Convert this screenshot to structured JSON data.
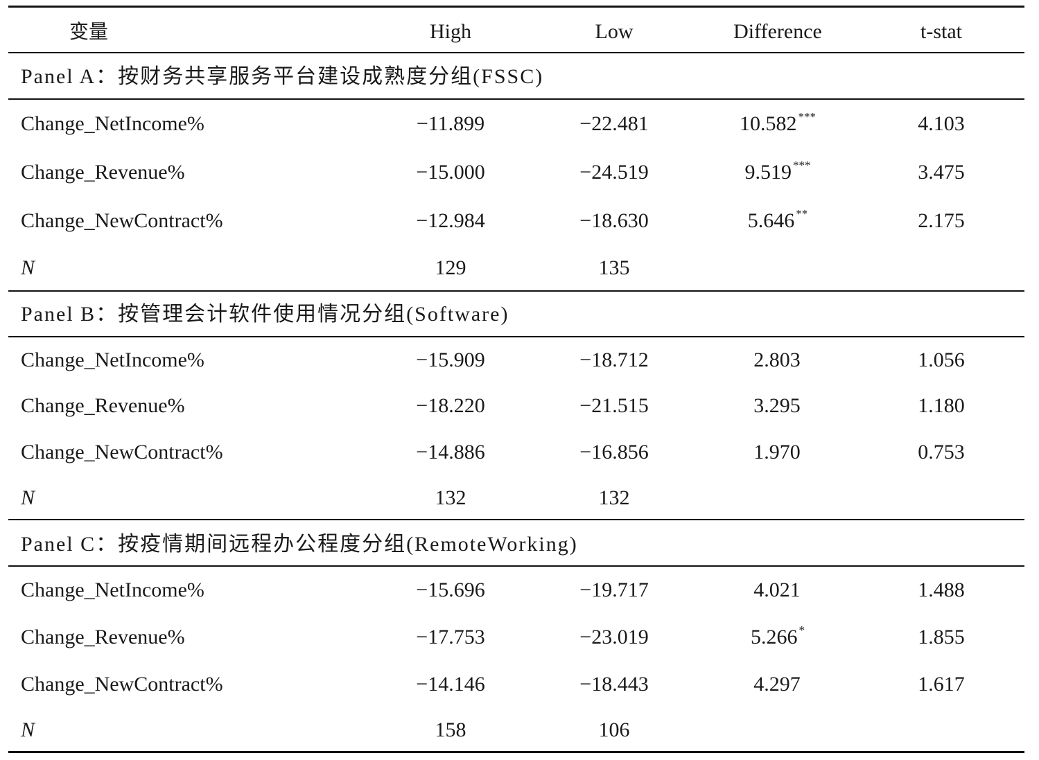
{
  "table": {
    "columns": [
      "变量",
      "High",
      "Low",
      "Difference",
      "t-stat"
    ],
    "panels": [
      {
        "title": "Panel A：按财务共享服务平台建设成熟度分组(FSSC)",
        "rows": [
          {
            "var": "Change_NetIncome%",
            "high": "−11.899",
            "low": "−22.481",
            "diff": "10.582",
            "stars": "***",
            "t": "4.103"
          },
          {
            "var": "Change_Revenue%",
            "high": "−15.000",
            "low": "−24.519",
            "diff": "9.519",
            "stars": "***",
            "t": "3.475"
          },
          {
            "var": "Change_NewContract%",
            "high": "−12.984",
            "low": "−18.630",
            "diff": "5.646",
            "stars": "**",
            "t": "2.175"
          }
        ],
        "n": {
          "label": "N",
          "high": "129",
          "low": "135"
        }
      },
      {
        "title": "Panel B：按管理会计软件使用情况分组(Software)",
        "rows": [
          {
            "var": "Change_NetIncome%",
            "high": "−15.909",
            "low": "−18.712",
            "diff": "2.803",
            "stars": "",
            "t": "1.056"
          },
          {
            "var": "Change_Revenue%",
            "high": "−18.220",
            "low": "−21.515",
            "diff": "3.295",
            "stars": "",
            "t": "1.180"
          },
          {
            "var": "Change_NewContract%",
            "high": "−14.886",
            "low": "−16.856",
            "diff": "1.970",
            "stars": "",
            "t": "0.753"
          }
        ],
        "n": {
          "label": "N",
          "high": "132",
          "low": "132"
        }
      },
      {
        "title": "Panel C：按疫情期间远程办公程度分组(RemoteWorking)",
        "rows": [
          {
            "var": "Change_NetIncome%",
            "high": "−15.696",
            "low": "−19.717",
            "diff": "4.021",
            "stars": "",
            "t": "1.488"
          },
          {
            "var": "Change_Revenue%",
            "high": "−17.753",
            "low": "−23.019",
            "diff": "5.266",
            "stars": "*",
            "t": "1.855"
          },
          {
            "var": "Change_NewContract%",
            "high": "−14.146",
            "low": "−18.443",
            "diff": "4.297",
            "stars": "",
            "t": "1.617"
          }
        ],
        "n": {
          "label": "N",
          "high": "158",
          "low": "106"
        }
      }
    ]
  }
}
